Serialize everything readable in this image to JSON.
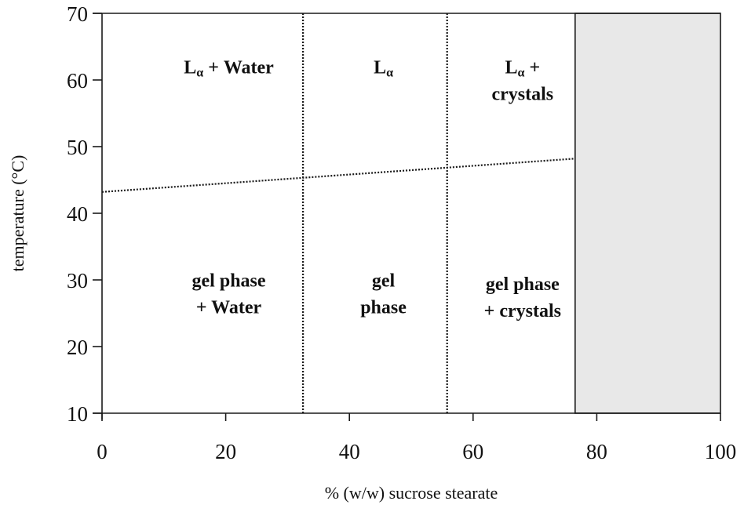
{
  "chart_data": {
    "type": "phase-diagram",
    "title": "",
    "xlabel": "% (w/w) sucrose stearate",
    "ylabel": "temperature (°C)",
    "xlim": [
      0,
      100
    ],
    "ylim": [
      10,
      70
    ],
    "xticks": [
      0,
      20,
      40,
      60,
      80,
      100
    ],
    "yticks": [
      10,
      20,
      30,
      40,
      50,
      60,
      70
    ],
    "grid": false,
    "legend": null,
    "boundaries": {
      "vertical_dotted": [
        32.5,
        55.8
      ],
      "solid_boundary_x": 76.5,
      "transition_line": {
        "style": "dotted",
        "x": [
          0,
          76.5
        ],
        "y": [
          43.2,
          48.2
        ]
      }
    },
    "shaded_region": {
      "x": [
        76.5,
        100
      ],
      "y": [
        10,
        70
      ],
      "color": "#e8e8e8"
    },
    "regions": [
      {
        "name": "La_water",
        "main": "L",
        "sub": "α",
        "rest": " + Water",
        "line2": "",
        "x": 20.5,
        "y": 61
      },
      {
        "name": "La",
        "main": "L",
        "sub": "α",
        "rest": "",
        "line2": "",
        "x": 45.5,
        "y": 61
      },
      {
        "name": "La_crystals",
        "main": "L",
        "sub": "α",
        "rest": " +",
        "line2": "crystals",
        "x": 68,
        "y": 61
      },
      {
        "name": "gel_water",
        "main": "gel phase",
        "sub": "",
        "rest": "",
        "line2": "+ Water",
        "x": 20.5,
        "y": 29
      },
      {
        "name": "gel",
        "main": "gel",
        "sub": "",
        "rest": "",
        "line2": "phase",
        "x": 45.5,
        "y": 29
      },
      {
        "name": "gel_crystals",
        "main": "gel phase",
        "sub": "",
        "rest": "",
        "line2": "+ crystals",
        "x": 68,
        "y": 28.5
      }
    ]
  },
  "colors": {
    "axis": "#1a1a1a",
    "shade": "#e8e8e8",
    "text": "#111111"
  }
}
